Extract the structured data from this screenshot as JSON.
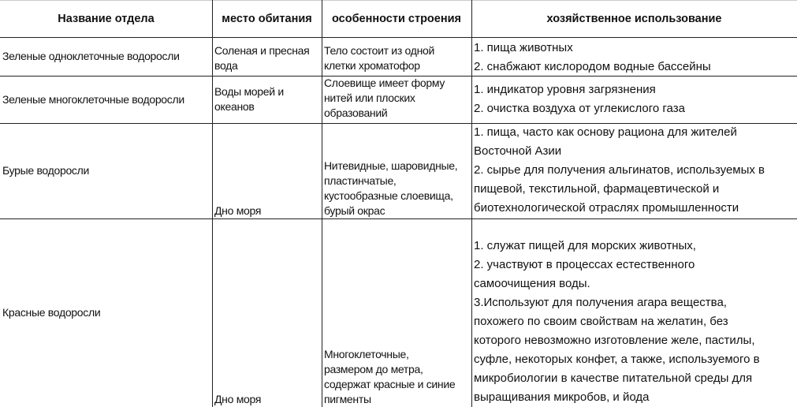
{
  "header": [
    "Название отдела",
    "место обитания",
    "особенности строения",
    "хозяйственное использование"
  ],
  "rows": [
    {
      "name": [
        "Зеленые одноклеточные водоросли"
      ],
      "habitat": [
        "Соленая и пресная",
        "вода"
      ],
      "structure": [
        "Тело состоит из одной",
        "клетки хроматофор"
      ],
      "usage": [
        "1. пища животных",
        "2. снабжают кислородом водные бассейны"
      ]
    },
    {
      "name": [
        " Зеленые многоклеточные водоросли"
      ],
      "habitat": [
        "Воды морей и",
        "океанов"
      ],
      "structure": [
        "Слоевище имеет форму",
        "нитей или плоских",
        "образований"
      ],
      "usage": [
        "1. индикатор уровня загрязнения",
        "2. очистка воздуха от углекислого газа"
      ]
    },
    {
      "name": [
        "Бурые водоросли"
      ],
      "habitat": [
        "Дно моря"
      ],
      "structure": [
        "Нитевидные, шаровидные,",
        "пластинчатые,",
        "кустообразные слоевища,",
        "бурый окрас"
      ],
      "usage": [
        "1. пища, часто как основу рациона для жителей",
        "Восточной Азии",
        "2. сырье для получения альгинатов, используемых в",
        "пищевой, текстильной, фармацевтической и",
        "биотехнологической отраслях промышленности"
      ]
    },
    {
      "name": [
        "Красные водоросли"
      ],
      "habitat": [
        "Дно моря"
      ],
      "structure": [
        "Многоклеточные,",
        "размером до метра,",
        "содержат красные и синие",
        "пигменты"
      ],
      "usage": [
        "1. служат пищей для морских животных,",
        "2. участвуют в процессах естественного",
        "самоочищения воды.",
        "3.Используют для получения агара вещества,",
        "похожего по своим свойствам на желатин, без",
        "которого невозможно изготовление желе, пастилы,",
        "суфле, некоторых конфет, а также, используемого в",
        "микробиологии в качестве питательной среды для",
        "выращивания микробов, и йода"
      ]
    }
  ]
}
